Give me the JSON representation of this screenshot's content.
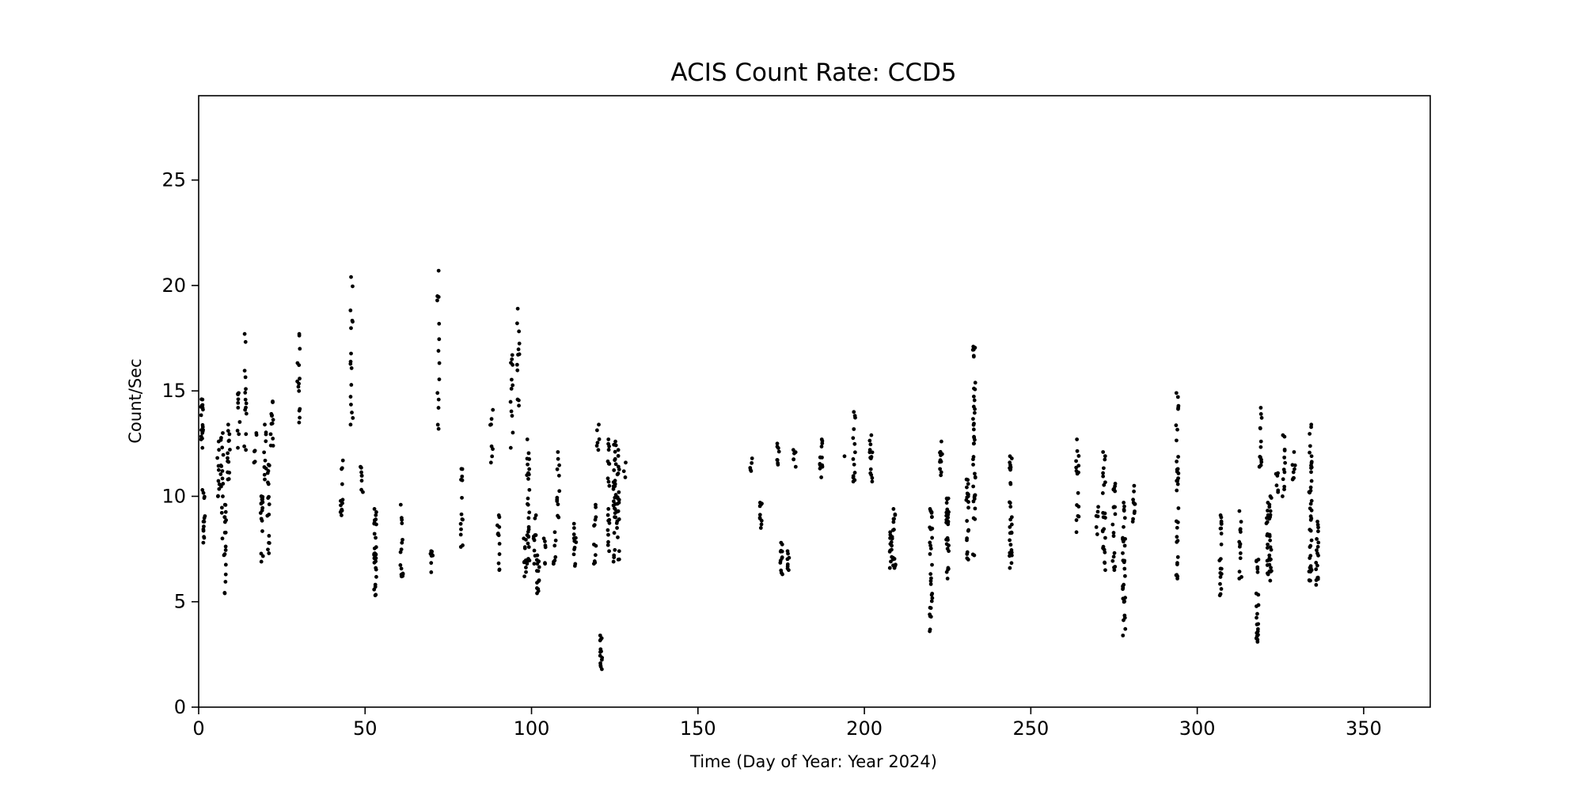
{
  "chart_data": {
    "type": "scatter",
    "title": "ACIS Count Rate: CCD5",
    "xlabel": "Time (Day of Year: Year 2024)",
    "ylabel": "Count/Sec",
    "xlim": [
      0,
      370
    ],
    "ylim": [
      0,
      29
    ],
    "xticks": [
      "0",
      "50",
      "100",
      "150",
      "200",
      "250",
      "300",
      "350"
    ],
    "yticks": [
      "0",
      "5",
      "10",
      "15",
      "20",
      "25"
    ],
    "grid": false,
    "marker_color": "#000000",
    "clusters": [
      {
        "x": 1,
        "y": [
          12.3,
          14.6
        ],
        "n": 18
      },
      {
        "x": 1.5,
        "y": [
          7.8,
          10.3
        ],
        "n": 14
      },
      {
        "x": 6,
        "y": [
          10.0,
          12.6
        ],
        "n": 10
      },
      {
        "x": 7,
        "y": [
          8.0,
          13.0
        ],
        "n": 16
      },
      {
        "x": 8,
        "y": [
          5.4,
          9.6
        ],
        "n": 18
      },
      {
        "x": 9,
        "y": [
          10.8,
          13.4
        ],
        "n": 14
      },
      {
        "x": 12,
        "y": [
          12.3,
          14.9
        ],
        "n": 10
      },
      {
        "x": 14,
        "y": [
          12.2,
          17.7
        ],
        "n": 14
      },
      {
        "x": 17,
        "y": [
          11.6,
          13.0
        ],
        "n": 6
      },
      {
        "x": 19,
        "y": [
          6.9,
          10.0
        ],
        "n": 16
      },
      {
        "x": 20,
        "y": [
          10.8,
          13.4
        ],
        "n": 10
      },
      {
        "x": 21,
        "y": [
          7.3,
          11.5
        ],
        "n": 16
      },
      {
        "x": 22,
        "y": [
          12.4,
          14.5
        ],
        "n": 12
      },
      {
        "x": 30,
        "y": [
          13.5,
          17.7
        ],
        "n": 14
      },
      {
        "x": 43,
        "y": [
          9.1,
          11.7
        ],
        "n": 14
      },
      {
        "x": 46,
        "y": [
          13.4,
          20.4
        ],
        "n": 16
      },
      {
        "x": 49,
        "y": [
          10.2,
          11.4
        ],
        "n": 8
      },
      {
        "x": 53,
        "y": [
          5.3,
          9.4
        ],
        "n": 30
      },
      {
        "x": 61,
        "y": [
          6.2,
          9.6
        ],
        "n": 16
      },
      {
        "x": 70,
        "y": [
          6.4,
          7.4
        ],
        "n": 8
      },
      {
        "x": 72,
        "y": [
          13.2,
          20.7
        ],
        "n": 14
      },
      {
        "x": 79,
        "y": [
          7.6,
          11.3
        ],
        "n": 14
      },
      {
        "x": 88,
        "y": [
          11.6,
          14.1
        ],
        "n": 8
      },
      {
        "x": 90,
        "y": [
          6.5,
          9.1
        ],
        "n": 12
      },
      {
        "x": 94,
        "y": [
          12.3,
          16.7
        ],
        "n": 12
      },
      {
        "x": 96,
        "y": [
          14.3,
          18.9
        ],
        "n": 12
      },
      {
        "x": 98,
        "y": [
          6.2,
          8.0
        ],
        "n": 10
      },
      {
        "x": 99,
        "y": [
          6.8,
          12.7
        ],
        "n": 28
      },
      {
        "x": 101,
        "y": [
          6.8,
          9.1
        ],
        "n": 10
      },
      {
        "x": 102,
        "y": [
          5.4,
          7.2
        ],
        "n": 14
      },
      {
        "x": 104,
        "y": [
          6.8,
          8.0
        ],
        "n": 6
      },
      {
        "x": 107,
        "y": [
          6.8,
          8.3
        ],
        "n": 8
      },
      {
        "x": 108,
        "y": [
          9.0,
          12.1
        ],
        "n": 12
      },
      {
        "x": 113,
        "y": [
          6.7,
          8.7
        ],
        "n": 12
      },
      {
        "x": 119,
        "y": [
          6.8,
          9.6
        ],
        "n": 12
      },
      {
        "x": 120,
        "y": [
          12.2,
          13.4
        ],
        "n": 6
      },
      {
        "x": 121,
        "y": [
          1.8,
          3.4
        ],
        "n": 14
      },
      {
        "x": 123,
        "y": [
          7.4,
          12.7
        ],
        "n": 20
      },
      {
        "x": 125,
        "y": [
          6.9,
          12.6
        ],
        "n": 30
      },
      {
        "x": 126,
        "y": [
          7.0,
          12.2
        ],
        "n": 22
      },
      {
        "x": 128,
        "y": [
          10.9,
          11.6
        ],
        "n": 3
      },
      {
        "x": 166,
        "y": [
          11.2,
          11.8
        ],
        "n": 5
      },
      {
        "x": 169,
        "y": [
          8.5,
          9.7
        ],
        "n": 10
      },
      {
        "x": 174,
        "y": [
          11.5,
          12.5
        ],
        "n": 8
      },
      {
        "x": 175,
        "y": [
          6.3,
          7.8
        ],
        "n": 12
      },
      {
        "x": 177,
        "y": [
          6.5,
          7.4
        ],
        "n": 8
      },
      {
        "x": 179,
        "y": [
          11.4,
          12.2
        ],
        "n": 6
      },
      {
        "x": 187,
        "y": [
          10.9,
          12.7
        ],
        "n": 14
      },
      {
        "x": 194,
        "y": [
          11.9,
          11.9
        ],
        "n": 1
      },
      {
        "x": 197,
        "y": [
          10.7,
          14.0
        ],
        "n": 14
      },
      {
        "x": 202,
        "y": [
          10.7,
          12.9
        ],
        "n": 14
      },
      {
        "x": 208,
        "y": [
          6.6,
          8.3
        ],
        "n": 14
      },
      {
        "x": 209,
        "y": [
          6.6,
          9.4
        ],
        "n": 18
      },
      {
        "x": 220,
        "y": [
          3.6,
          9.4
        ],
        "n": 30
      },
      {
        "x": 223,
        "y": [
          11.0,
          12.6
        ],
        "n": 12
      },
      {
        "x": 225,
        "y": [
          6.1,
          9.9
        ],
        "n": 30
      },
      {
        "x": 231,
        "y": [
          7.0,
          10.8
        ],
        "n": 20
      },
      {
        "x": 233,
        "y": [
          7.2,
          17.1
        ],
        "n": 40
      },
      {
        "x": 244,
        "y": [
          6.6,
          11.9
        ],
        "n": 30
      },
      {
        "x": 264,
        "y": [
          8.3,
          12.7
        ],
        "n": 16
      },
      {
        "x": 270,
        "y": [
          8.2,
          9.5
        ],
        "n": 6
      },
      {
        "x": 272,
        "y": [
          6.5,
          12.1
        ],
        "n": 24
      },
      {
        "x": 275,
        "y": [
          6.5,
          10.6
        ],
        "n": 18
      },
      {
        "x": 278,
        "y": [
          3.4,
          9.7
        ],
        "n": 30
      },
      {
        "x": 281,
        "y": [
          8.8,
          10.5
        ],
        "n": 10
      },
      {
        "x": 294,
        "y": [
          6.1,
          14.9
        ],
        "n": 34
      },
      {
        "x": 307,
        "y": [
          5.3,
          9.1
        ],
        "n": 20
      },
      {
        "x": 313,
        "y": [
          6.1,
          9.3
        ],
        "n": 14
      },
      {
        "x": 318,
        "y": [
          3.1,
          7.0
        ],
        "n": 22
      },
      {
        "x": 319,
        "y": [
          11.4,
          14.2
        ],
        "n": 14
      },
      {
        "x": 321,
        "y": [
          6.3,
          9.7
        ],
        "n": 14
      },
      {
        "x": 322,
        "y": [
          6.0,
          10.0
        ],
        "n": 24
      },
      {
        "x": 324,
        "y": [
          10.2,
          11.1
        ],
        "n": 6
      },
      {
        "x": 326,
        "y": [
          10.0,
          12.9
        ],
        "n": 12
      },
      {
        "x": 329,
        "y": [
          10.8,
          12.1
        ],
        "n": 8
      },
      {
        "x": 334,
        "y": [
          6.0,
          13.4
        ],
        "n": 40
      },
      {
        "x": 336,
        "y": [
          5.8,
          8.8
        ],
        "n": 18
      }
    ]
  }
}
